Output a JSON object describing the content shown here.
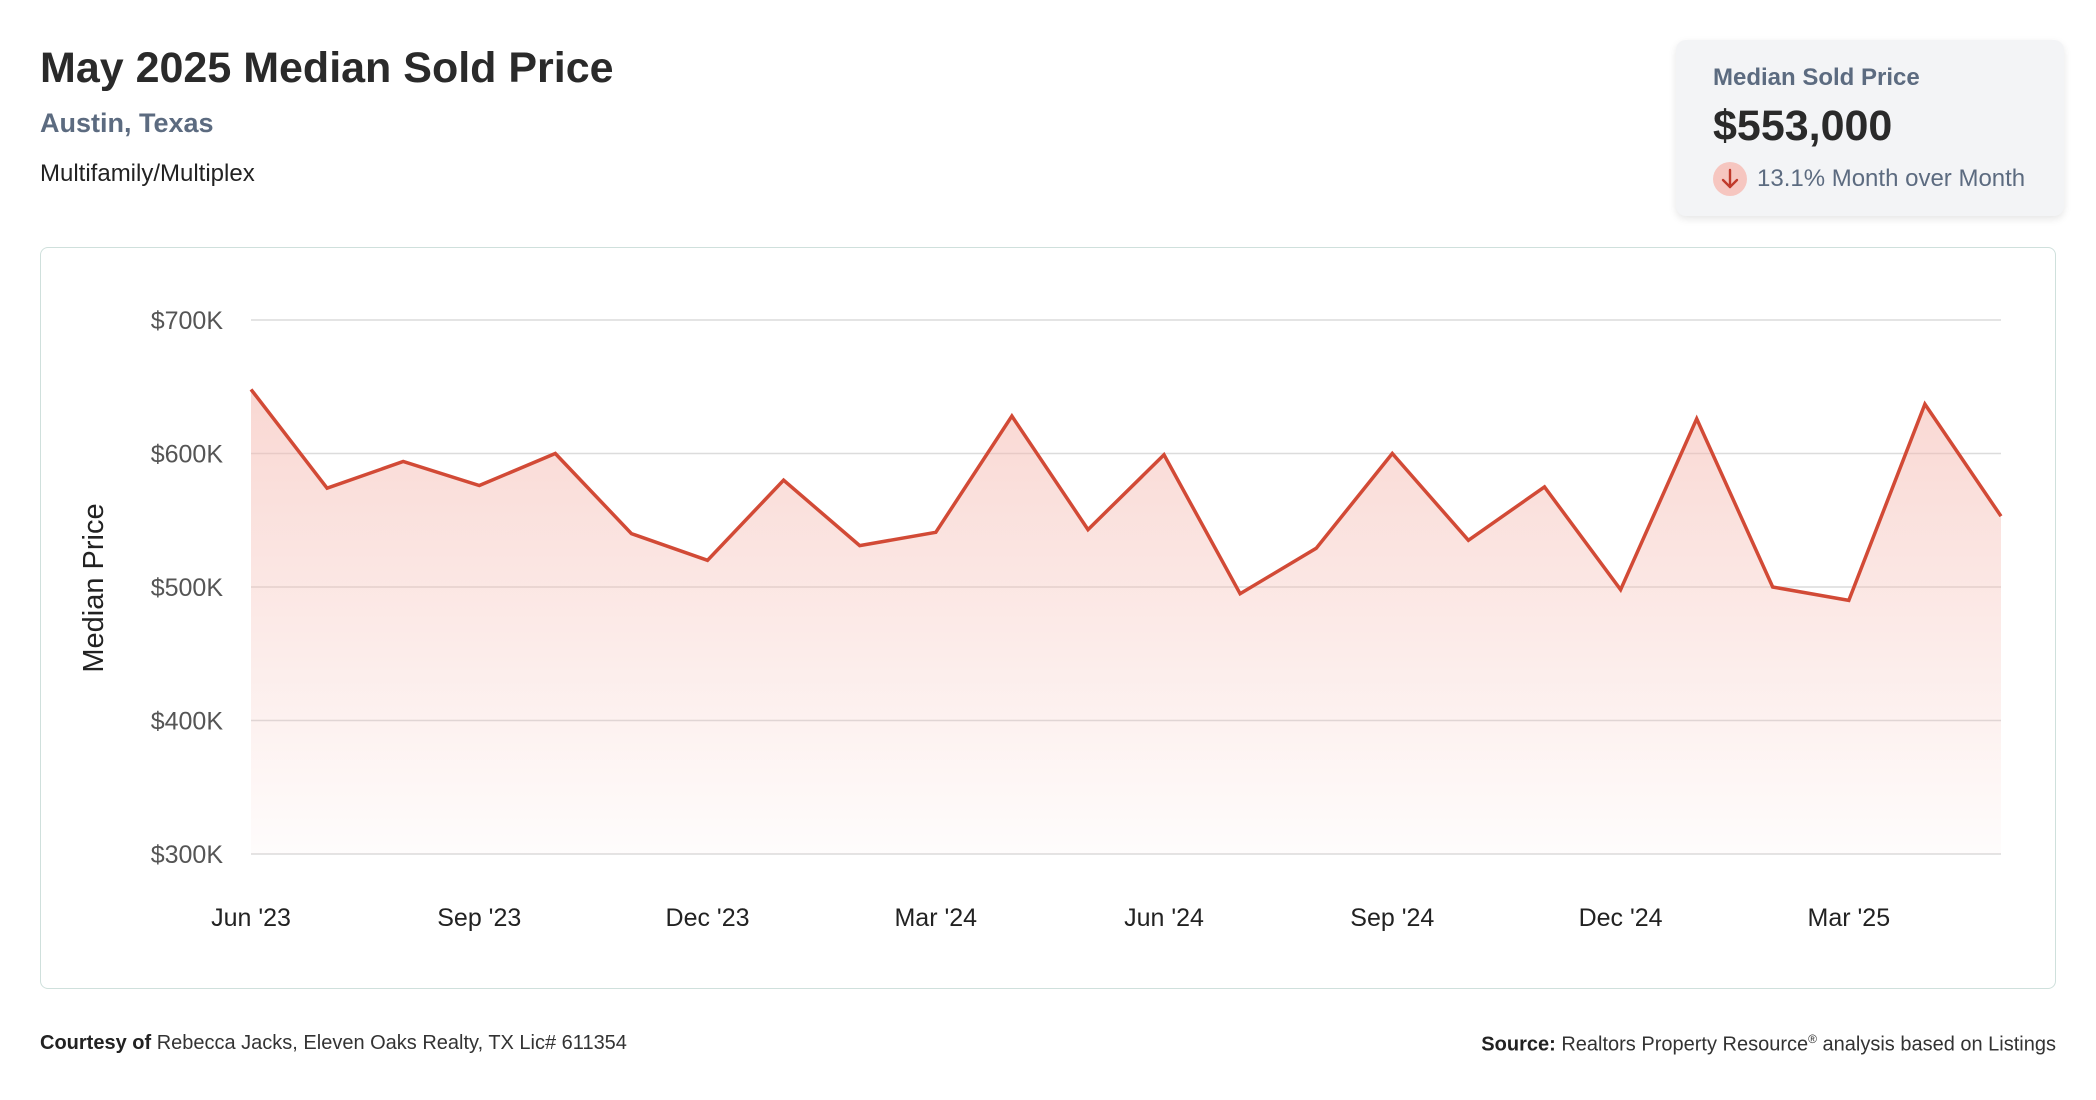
{
  "header": {
    "title": "May 2025 Median Sold Price",
    "location": "Austin, Texas",
    "property_type": "Multifamily/Multiplex"
  },
  "stat_card": {
    "label": "Median Sold Price",
    "value": "$553,000",
    "change": "13.1% Month over Month",
    "direction_icon": "arrow-down-icon",
    "down_color": "#c0392b"
  },
  "chart_data": {
    "type": "area",
    "title": "",
    "xlabel": "",
    "ylabel": "Median Price",
    "x": [
      "Jun '23",
      "Jul '23",
      "Aug '23",
      "Sep '23",
      "Oct '23",
      "Nov '23",
      "Dec '23",
      "Jan '24",
      "Feb '24",
      "Mar '24",
      "Apr '24",
      "May '24",
      "Jun '24",
      "Jul '24",
      "Aug '24",
      "Sep '24",
      "Oct '24",
      "Nov '24",
      "Dec '24",
      "Jan '25",
      "Feb '25",
      "Mar '25",
      "Apr '25",
      "May '25"
    ],
    "values": [
      648000,
      574000,
      594000,
      576000,
      600000,
      540000,
      520000,
      580000,
      531000,
      541000,
      628000,
      543000,
      599000,
      495000,
      529000,
      600000,
      535000,
      575000,
      498000,
      626000,
      500000,
      490000,
      637000,
      553000
    ],
    "ylim": [
      300000,
      700000
    ],
    "y_ticks": [
      {
        "value": 300000,
        "label": "$300K"
      },
      {
        "value": 400000,
        "label": "$400K"
      },
      {
        "value": 500000,
        "label": "$500K"
      },
      {
        "value": 600000,
        "label": "$600K"
      },
      {
        "value": 700000,
        "label": "$700K"
      }
    ],
    "x_ticks": [
      "Jun '23",
      "Sep '23",
      "Dec '23",
      "Mar '24",
      "Jun '24",
      "Sep '24",
      "Dec '24",
      "Mar '25"
    ],
    "grid": true,
    "line_color": "#d24a36",
    "fill_color": "#f4b7ae"
  },
  "footer": {
    "courtesy_label": "Courtesy of",
    "courtesy_text": "Rebecca Jacks, Eleven Oaks Realty, TX Lic# 611354",
    "source_label": "Source:",
    "source_name": "Realtors Property Resource",
    "source_mark": "®",
    "source_text": "analysis based on Listings"
  }
}
